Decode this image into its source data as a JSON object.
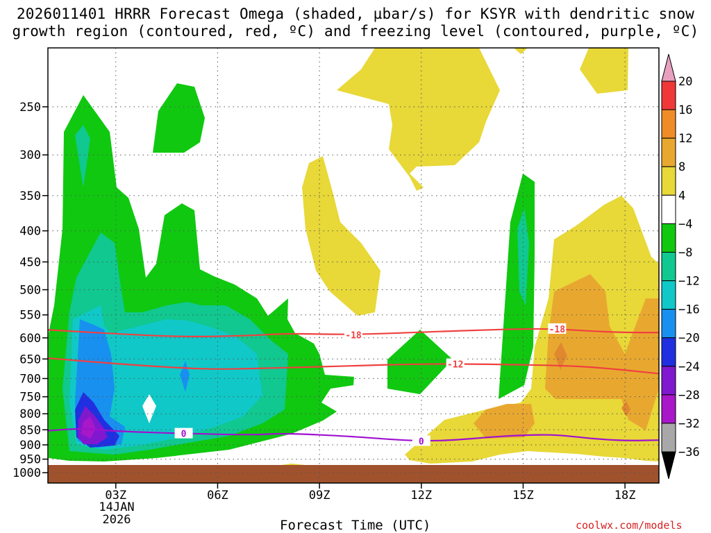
{
  "chart_data": {
    "type": "time-height contour",
    "title_line1": "2026011401 HRRR Forecast Omega (shaded, µbar/s) for KSYR with dendritic snow",
    "title_line2": "growth region (contoured, red, ºC) and freezing level (contoured, purple, ºC)",
    "xlabel": "Forecast Time (UTC)",
    "ylabel": "",
    "x_ticks": [
      "03Z",
      "06Z",
      "09Z",
      "12Z",
      "15Z",
      "18Z"
    ],
    "x_tick_hours": [
      3,
      6,
      9,
      12,
      15,
      18
    ],
    "x_range_hours": [
      1,
      19
    ],
    "x_date_label": [
      "14JAN",
      "2026"
    ],
    "y_ticks": [
      250,
      300,
      350,
      400,
      450,
      500,
      550,
      600,
      650,
      700,
      750,
      800,
      850,
      900,
      950,
      1000
    ],
    "y_range_hPa": [
      200,
      1040
    ],
    "colorbar": {
      "levels": [
        "20",
        "16",
        "12",
        "8",
        "4",
        "−4",
        "−8",
        "−12",
        "−16",
        "−20",
        "−24",
        "−28",
        "−32",
        "−36"
      ],
      "colors": [
        "#e8a0c0",
        "#f03838",
        "#f08c28",
        "#e8a830",
        "#e8d838",
        "#ffffff",
        "#10c810",
        "#10c890",
        "#10c8c8",
        "#1890f0",
        "#2030e0",
        "#8018d0",
        "#a818c8",
        "#a8a8a8",
        "#000000"
      ]
    },
    "contours": [
      {
        "name": "-18 °C isotherm",
        "label": "-18",
        "color": "#f04040",
        "x": [
          1,
          3,
          5,
          7,
          8,
          10,
          12,
          14,
          15,
          16,
          17,
          18,
          19
        ],
        "p": [
          582,
          591,
          598,
          595,
          590,
          593,
          587,
          582,
          580,
          580,
          585,
          588,
          588
        ]
      },
      {
        "name": "-12 °C isotherm",
        "label": "-12",
        "color": "#f04040",
        "x": [
          1,
          3,
          5,
          6,
          8,
          10,
          12,
          14,
          16,
          17,
          18,
          19
        ],
        "p": [
          648,
          662,
          673,
          676,
          672,
          667,
          662,
          663,
          666,
          670,
          678,
          687
        ]
      },
      {
        "name": "freezing level",
        "label": "0",
        "color": "#a010d0",
        "x": [
          1,
          2,
          3,
          5,
          7,
          8,
          10,
          11,
          12,
          13,
          14,
          15,
          16,
          17,
          18,
          19
        ],
        "p": [
          853,
          845,
          855,
          862,
          867,
          861,
          872,
          881,
          887,
          884,
          874,
          867,
          866,
          879,
          886,
          884
        ]
      }
    ],
    "omega_regions": [
      {
        "value": "-8 to -4",
        "color": "#10c810"
      },
      {
        "value": "-12 to -8",
        "color": "#10c890"
      },
      {
        "value": "-16 to -12",
        "color": "#10c8c8"
      },
      {
        "value": "-20 to -16",
        "color": "#1890f0"
      },
      {
        "value": "-24 to -20",
        "color": "#2030e0"
      },
      {
        "value": "-28 to -24",
        "color": "#8018d0"
      },
      {
        "value": "4 to 8",
        "color": "#e8d838"
      },
      {
        "value": "8 to 12",
        "color": "#e8a830"
      }
    ],
    "terrain_color": "#a0522d"
  },
  "watermark": "coolwx.com/models"
}
